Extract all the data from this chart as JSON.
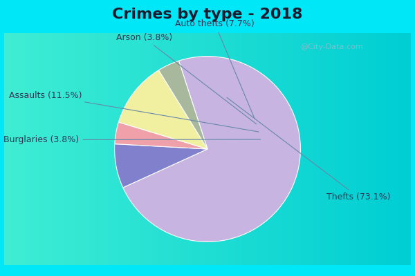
{
  "title": "Crimes by type - 2018",
  "slices": [
    {
      "label": "Thefts (73.1%)",
      "value": 73.1,
      "color": "#c8b4e0"
    },
    {
      "label": "Auto thefts (7.7%)",
      "value": 7.7,
      "color": "#8080cc"
    },
    {
      "label": "Arson (3.8%)",
      "value": 3.8,
      "color": "#f0a0a8"
    },
    {
      "label": "Assaults (11.5%)",
      "value": 11.5,
      "color": "#f0f0a0"
    },
    {
      "label": "Burglaries (3.8%)",
      "value": 3.8,
      "color": "#a8b89c"
    }
  ],
  "bg_cyan": "#00e8f8",
  "bg_chart": "#d8ecd8",
  "title_fontsize": 16,
  "label_fontsize": 9,
  "startangle": 108,
  "watermark": "@City-Data.com"
}
